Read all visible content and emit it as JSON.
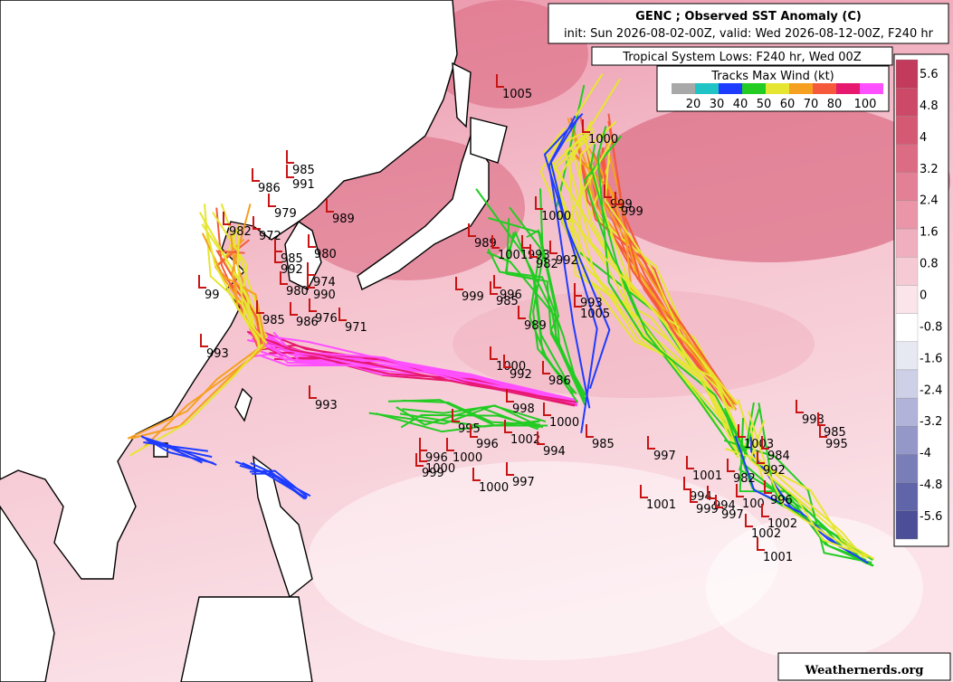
{
  "header": {
    "title": "GENC ; Observed SST Anomaly (C)",
    "subtitle": "init: Sun 2026-08-02-00Z, valid: Wed 2026-08-12-00Z, F240 hr"
  },
  "lows_box": "Tropical System Lows: F240 hr, Wed 00Z",
  "wind_legend": {
    "title": "Tracks Max Wind (kt)",
    "ticks": [
      20,
      30,
      40,
      50,
      60,
      70,
      80,
      100
    ],
    "colors": [
      "#a8a8a8",
      "#20c4c4",
      "#1e3cff",
      "#22cc22",
      "#e6e632",
      "#f5a020",
      "#f55a3c",
      "#e6196e",
      "#ff50ff"
    ]
  },
  "colorbar": {
    "ticks": [
      5.6,
      4.8,
      4,
      3.2,
      2.4,
      1.6,
      0.8,
      0,
      -0.8,
      -1.6,
      -2.4,
      -3.2,
      -4,
      -4.8,
      -5.6
    ],
    "colors": [
      "#c23a5c",
      "#cc4a68",
      "#d45a74",
      "#dc6c84",
      "#e38096",
      "#ea96a8",
      "#f0afbe",
      "#f6cad4",
      "#fbe4ea",
      "#ffffff",
      "#e6e8f2",
      "#cdd0e6",
      "#b1b4d8",
      "#9498c8",
      "#7a7eb8",
      "#6064a8",
      "#4c4e98"
    ]
  },
  "pressure_labels": [
    985,
    991,
    986,
    979,
    989,
    982,
    972,
    980,
    985,
    992,
    974,
    990,
    980,
    99,
    993,
    985,
    986,
    976,
    971,
    993,
    1005,
    1000,
    999,
    999,
    1000,
    989,
    1001,
    993,
    982,
    992,
    999,
    996,
    985,
    989,
    993,
    1005,
    1000,
    992,
    986,
    998,
    1000,
    995,
    996,
    1002,
    994,
    985,
    997,
    997,
    1000,
    1001,
    998,
    985,
    995,
    1003,
    984,
    992,
    982,
    1001,
    994,
    999,
    994,
    997,
    100,
    996,
    1002,
    1002,
    1001,
    996,
    1000,
    999,
    1000
  ],
  "watermark": "Weathernerds.org"
}
